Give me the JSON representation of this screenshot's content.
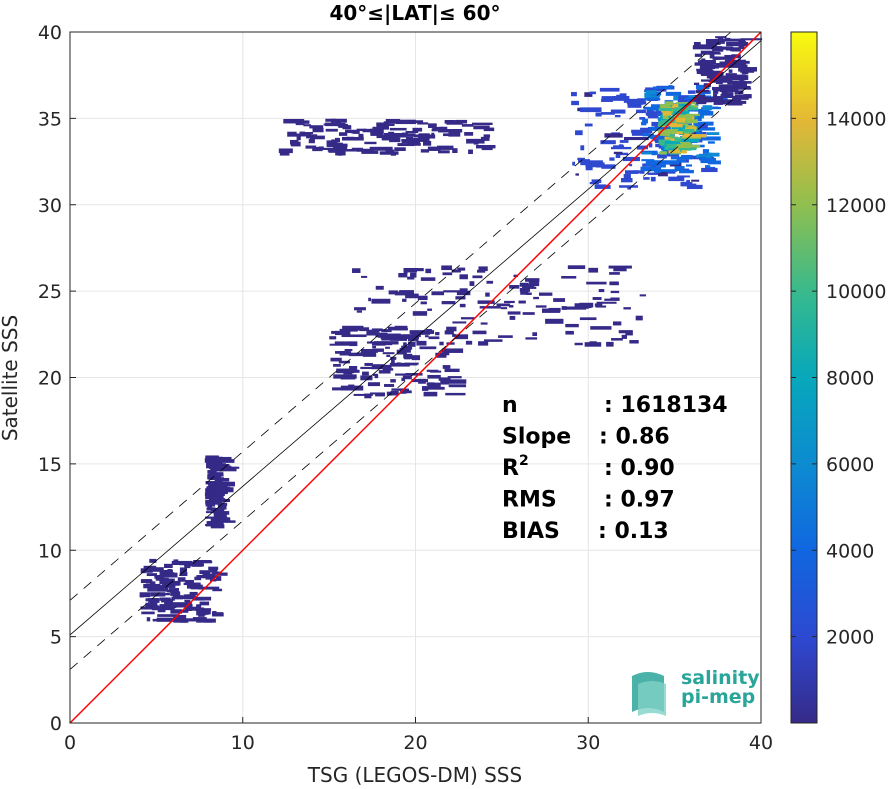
{
  "chart_data": {
    "type": "heatmap",
    "title": "40°≤|LAT|≤ 60°",
    "xlabel": "TSG (LEGOS-DM) SSS",
    "ylabel": "Satellite SSS",
    "xlim": [
      0,
      40
    ],
    "ylim": [
      0,
      40
    ],
    "x_ticks": [
      "0",
      "10",
      "20",
      "30",
      "40"
    ],
    "y_ticks": [
      "0",
      "5",
      "10",
      "15",
      "20",
      "25",
      "30",
      "35",
      "40"
    ],
    "grid": true,
    "colorbar": {
      "min": 0,
      "max": 16000,
      "ticks": [
        "2000",
        "4000",
        "6000",
        "8000",
        "10000",
        "12000",
        "14000"
      ],
      "colormap": "parula"
    },
    "stats": [
      {
        "label": "n",
        "value": ": 1618134"
      },
      {
        "label": "Slope",
        "value": ": 0.86"
      },
      {
        "label": "R",
        "sup": "2",
        "value": ": 0.90"
      },
      {
        "label": "RMS",
        "value": ": 0.97"
      },
      {
        "label": "BIAS",
        "value": ": 0.13"
      }
    ],
    "lines": {
      "identity": {
        "slope": 1.0,
        "intercept": 0,
        "color": "#ff0000"
      },
      "regression": {
        "slope": 0.86,
        "intercept": 5.1,
        "color": "#000000"
      },
      "regression_band": {
        "offset": 2.0,
        "style": "dashed"
      }
    },
    "density_clusters": [
      {
        "x": [
          29,
          36
        ],
        "y": [
          31,
          37
        ],
        "density": 1500
      },
      {
        "x": [
          33,
          37
        ],
        "y": [
          32,
          37
        ],
        "density": 4500
      },
      {
        "x": [
          34,
          35.5
        ],
        "y": [
          33,
          36
        ],
        "density": 12000
      },
      {
        "x": [
          36,
          39
        ],
        "y": [
          36,
          39.8
        ],
        "density": 800
      },
      {
        "x": [
          16,
          33
        ],
        "y": [
          22,
          26.5
        ],
        "density": 600
      },
      {
        "x": [
          15,
          22
        ],
        "y": [
          19,
          23
        ],
        "density": 300
      },
      {
        "x": [
          12,
          24
        ],
        "y": [
          33,
          35
        ],
        "density": 250
      },
      {
        "x": [
          4,
          8.5
        ],
        "y": [
          6,
          9.5
        ],
        "density": 300
      },
      {
        "x": [
          7.8,
          8.6
        ],
        "y": [
          11.5,
          15.5
        ],
        "density": 200
      }
    ]
  },
  "logo": {
    "line1": "salinity",
    "line2": "pi-mep"
  }
}
